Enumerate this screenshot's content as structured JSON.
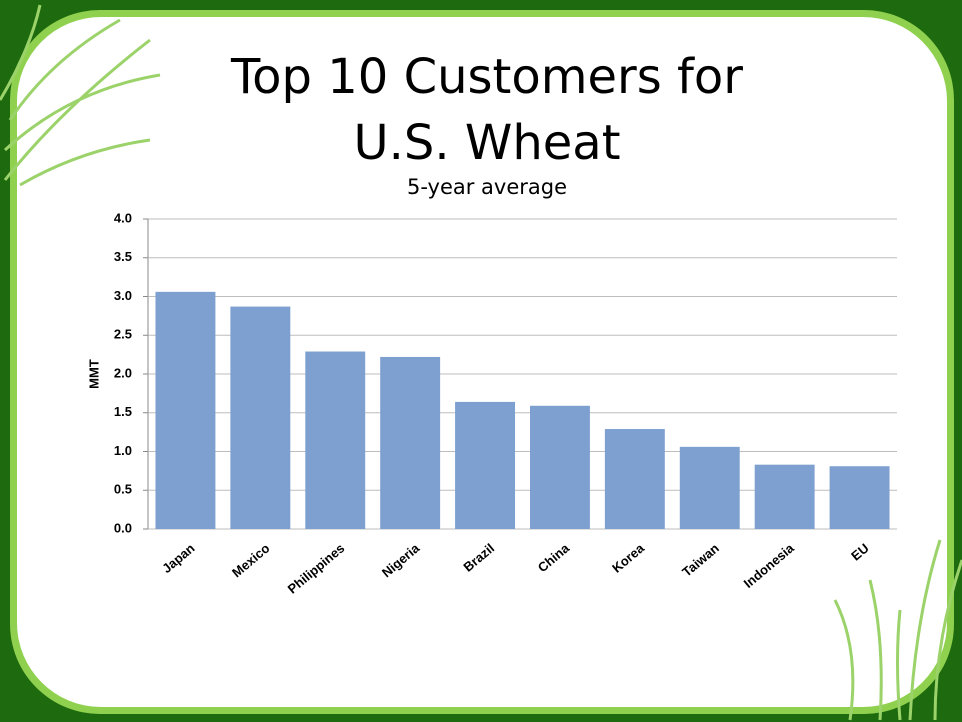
{
  "chart_data": {
    "type": "bar",
    "title": "Top 10 Customers for U.S. Wheat",
    "subtitle": "5-year average",
    "y_label": "MMT",
    "categories": [
      "Japan",
      "Mexico",
      "Philippines",
      "Nigeria",
      "Brazil",
      "China",
      "Korea",
      "Taiwan",
      "Indonesia",
      "EU"
    ],
    "values": [
      3.06,
      2.87,
      2.29,
      2.22,
      1.64,
      1.59,
      1.29,
      1.06,
      0.83,
      0.81
    ],
    "color": "#7da0d0",
    "ylim": [
      0,
      4
    ],
    "yticks": [
      {
        "value": 0,
        "label": "0.0"
      },
      0.5,
      {
        "value": 1,
        "label": "1.0"
      },
      1.5,
      {
        "value": 2,
        "label": "2.0"
      },
      2.5,
      {
        "value": 3,
        "label": "3.0"
      },
      3.5,
      {
        "value": 4,
        "label": "4.0"
      }
    ],
    "grid": true
  }
}
